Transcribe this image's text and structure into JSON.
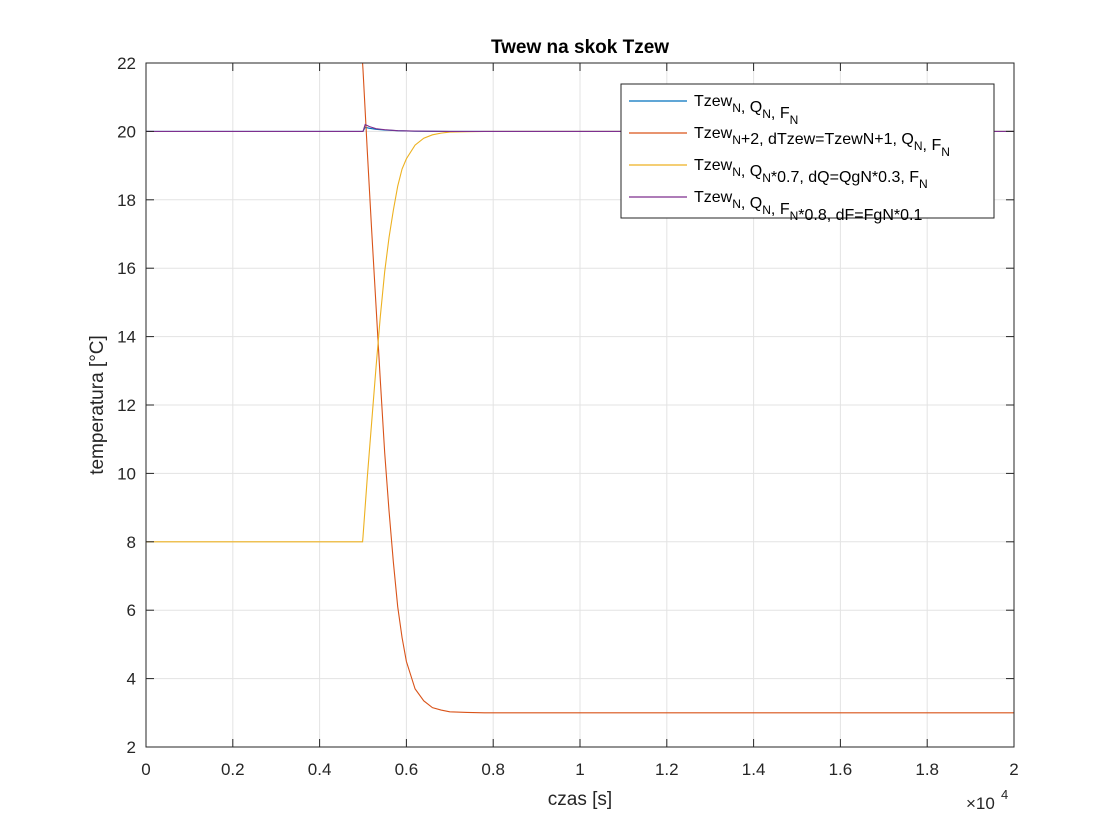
{
  "chart_data": {
    "type": "line",
    "title": "Twew na skok Tzew",
    "xlabel": "czas [s]",
    "ylabel": "temperatura [°C]",
    "x_multiplier_label": "×10",
    "x_multiplier_exp": "4",
    "xlim": [
      0,
      20000
    ],
    "ylim": [
      2,
      22
    ],
    "xticks": [
      0,
      2000,
      4000,
      6000,
      8000,
      10000,
      12000,
      14000,
      16000,
      18000,
      20000
    ],
    "xtick_labels": [
      "0",
      "0.2",
      "0.4",
      "0.6",
      "0.8",
      "1",
      "1.2",
      "1.4",
      "1.6",
      "1.8",
      "2"
    ],
    "yticks": [
      2,
      4,
      6,
      8,
      10,
      12,
      14,
      16,
      18,
      20,
      22
    ],
    "ytick_labels": [
      "2",
      "4",
      "6",
      "8",
      "10",
      "12",
      "14",
      "16",
      "18",
      "20",
      "22"
    ],
    "grid": true,
    "legend_position": "top-right",
    "step_time": 5000,
    "series": [
      {
        "name": "Tzew_N, Q_N, F_N",
        "legend_parts": [
          [
            "Tzew",
            ""
          ],
          [
            "N",
            "sub"
          ],
          [
            ", Q",
            ""
          ],
          [
            "N",
            "sub"
          ],
          [
            ", F",
            ""
          ],
          [
            "N",
            "sub"
          ]
        ],
        "color": "#0072bd",
        "x": [
          0,
          5000,
          5050,
          5150,
          5300,
          5500,
          5800,
          6200,
          7000,
          20000
        ],
        "y": [
          20,
          20,
          20.12,
          20.09,
          20.06,
          20.04,
          20.02,
          20.005,
          20,
          20
        ]
      },
      {
        "name": "Tzew_N+2, dTzew=TzewN+1, Q_N, F_N",
        "legend_parts": [
          [
            "Tzew",
            ""
          ],
          [
            "N",
            "sub"
          ],
          [
            "+2, dTzew=TzewN+1, Q",
            ""
          ],
          [
            "N",
            "sub"
          ],
          [
            ", F",
            ""
          ],
          [
            "N",
            "sub"
          ]
        ],
        "color": "#d95319",
        "x": [
          0,
          4990,
          5000,
          5100,
          5200,
          5300,
          5400,
          5500,
          5600,
          5700,
          5800,
          5900,
          6000,
          6200,
          6400,
          6600,
          6800,
          7000,
          7400,
          7800,
          20000
        ],
        "y": [
          22,
          22,
          21.8,
          19.4,
          17.1,
          14.9,
          12.7,
          10.6,
          8.9,
          7.4,
          6.1,
          5.2,
          4.5,
          3.7,
          3.35,
          3.15,
          3.08,
          3.03,
          3.01,
          3.0,
          3.0
        ]
      },
      {
        "name": "Tzew_N, Q_N*0.7, dQ=QgN*0.3, F_N",
        "legend_parts": [
          [
            "Tzew",
            ""
          ],
          [
            "N",
            "sub"
          ],
          [
            ", Q",
            ""
          ],
          [
            "N",
            "sub"
          ],
          [
            "*0.7, dQ=QgN*0.3, F",
            ""
          ],
          [
            "N",
            "sub"
          ]
        ],
        "color": "#edb120",
        "x": [
          0,
          4990,
          5000,
          5100,
          5200,
          5300,
          5400,
          5500,
          5600,
          5700,
          5800,
          5900,
          6000,
          6200,
          6400,
          6600,
          6800,
          7000,
          7400,
          7800,
          20000
        ],
        "y": [
          8,
          8,
          8.15,
          9.9,
          11.5,
          13.1,
          14.6,
          15.9,
          16.9,
          17.7,
          18.4,
          18.9,
          19.2,
          19.6,
          19.8,
          19.9,
          19.95,
          19.98,
          19.99,
          20,
          20
        ]
      },
      {
        "name": "Tzew_N, Q_N, F_N*0.8, dF=FgN*0.1",
        "legend_parts": [
          [
            "Tzew",
            ""
          ],
          [
            "N",
            "sub"
          ],
          [
            ", Q",
            ""
          ],
          [
            "N",
            "sub"
          ],
          [
            ", F",
            ""
          ],
          [
            "N",
            "sub"
          ],
          [
            "*0.8, dF=FgN*0.1",
            ""
          ]
        ],
        "color": "#7e2f8e",
        "x": [
          0,
          5000,
          5050,
          5150,
          5300,
          5500,
          5800,
          6200,
          7000,
          20000
        ],
        "y": [
          20,
          20,
          20.2,
          20.14,
          20.08,
          20.05,
          20.02,
          20.01,
          20,
          20
        ]
      }
    ]
  }
}
